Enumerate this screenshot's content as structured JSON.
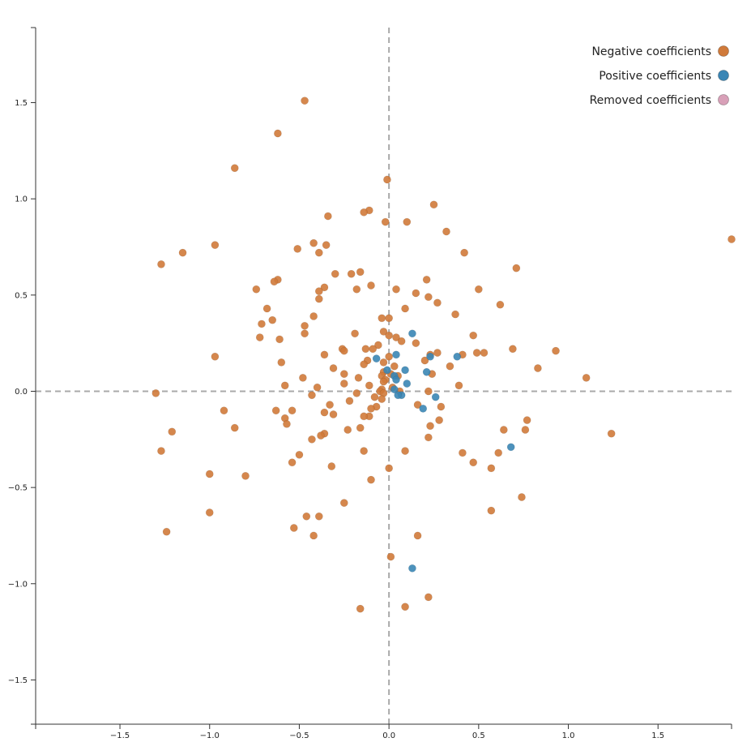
{
  "chart_data": {
    "type": "scatter",
    "title": "",
    "xlabel": "",
    "ylabel": "",
    "xlim": [
      -1.97,
      1.91
    ],
    "ylim": [
      -1.73,
      1.89
    ],
    "x_ticks": [
      -1.5,
      -1.0,
      -0.5,
      0.0,
      0.5,
      1.0,
      1.5
    ],
    "x_tick_labels": [
      "−1.5",
      "−1.0",
      "−0.5",
      "0.0",
      "0.5",
      "1.0",
      "1.5"
    ],
    "y_ticks": [
      1.5,
      1.0,
      0.5,
      0.0,
      -0.5,
      -1.0,
      -1.5
    ],
    "y_tick_labels": [
      "1.5",
      "1.0",
      "0.5",
      "0.0",
      "−0.5",
      "−1.0",
      "−1.5"
    ],
    "zero_lines": true,
    "grid": false,
    "legend_position": "top-right",
    "colors": {
      "negative": "#d07a3a",
      "positive": "#3a86b5",
      "removed": "#d8a0b8",
      "zero_line": "#a9a9a9",
      "axis": "#333333"
    },
    "series": [
      {
        "name": "Negative coefficients",
        "color_key": "negative",
        "points": [
          [
            -0.47,
            1.51
          ],
          [
            -0.62,
            1.34
          ],
          [
            -0.86,
            1.16
          ],
          [
            -0.01,
            1.1
          ],
          [
            0.25,
            0.97
          ],
          [
            -0.11,
            0.94
          ],
          [
            -0.14,
            0.93
          ],
          [
            -0.34,
            0.91
          ],
          [
            -0.02,
            0.88
          ],
          [
            0.1,
            0.88
          ],
          [
            0.32,
            0.83
          ],
          [
            1.91,
            0.79
          ],
          [
            -0.42,
            0.77
          ],
          [
            -0.97,
            0.76
          ],
          [
            -0.35,
            0.76
          ],
          [
            -0.51,
            0.74
          ],
          [
            -1.15,
            0.72
          ],
          [
            -0.39,
            0.72
          ],
          [
            0.42,
            0.72
          ],
          [
            -1.27,
            0.66
          ],
          [
            0.71,
            0.64
          ],
          [
            -0.16,
            0.62
          ],
          [
            -0.21,
            0.61
          ],
          [
            -0.3,
            0.61
          ],
          [
            -0.62,
            0.58
          ],
          [
            -0.64,
            0.57
          ],
          [
            0.21,
            0.58
          ],
          [
            -0.1,
            0.55
          ],
          [
            -0.36,
            0.54
          ],
          [
            -0.74,
            0.53
          ],
          [
            -0.18,
            0.53
          ],
          [
            0.04,
            0.53
          ],
          [
            0.5,
            0.53
          ],
          [
            -0.39,
            0.52
          ],
          [
            0.15,
            0.51
          ],
          [
            0.22,
            0.49
          ],
          [
            -0.39,
            0.48
          ],
          [
            0.27,
            0.46
          ],
          [
            0.62,
            0.45
          ],
          [
            -0.68,
            0.43
          ],
          [
            0.09,
            0.43
          ],
          [
            0.37,
            0.4
          ],
          [
            -0.42,
            0.39
          ],
          [
            -0.04,
            0.38
          ],
          [
            -0.65,
            0.37
          ],
          [
            -0.71,
            0.35
          ],
          [
            0.0,
            0.38
          ],
          [
            -0.47,
            0.34
          ],
          [
            -0.03,
            0.31
          ],
          [
            -0.19,
            0.3
          ],
          [
            -0.47,
            0.3
          ],
          [
            0.47,
            0.29
          ],
          [
            -0.72,
            0.28
          ],
          [
            -0.61,
            0.27
          ],
          [
            0.0,
            0.29
          ],
          [
            0.04,
            0.28
          ],
          [
            0.07,
            0.26
          ],
          [
            0.15,
            0.25
          ],
          [
            -0.06,
            0.24
          ],
          [
            -0.13,
            0.22
          ],
          [
            -0.09,
            0.22
          ],
          [
            0.69,
            0.22
          ],
          [
            0.93,
            0.21
          ],
          [
            -0.26,
            0.22
          ],
          [
            -0.25,
            0.21
          ],
          [
            0.27,
            0.2
          ],
          [
            -0.36,
            0.19
          ],
          [
            0.41,
            0.19
          ],
          [
            0.53,
            0.2
          ],
          [
            0.49,
            0.2
          ],
          [
            -0.97,
            0.18
          ],
          [
            0.0,
            0.18
          ],
          [
            0.23,
            0.19
          ],
          [
            -0.12,
            0.16
          ],
          [
            -0.03,
            0.15
          ],
          [
            0.2,
            0.16
          ],
          [
            -0.6,
            0.15
          ],
          [
            -0.14,
            0.14
          ],
          [
            0.34,
            0.13
          ],
          [
            0.03,
            0.13
          ],
          [
            0.83,
            0.12
          ],
          [
            -0.31,
            0.12
          ],
          [
            -0.03,
            0.1
          ],
          [
            0.01,
            0.09
          ],
          [
            -0.25,
            0.09
          ],
          [
            0.24,
            0.09
          ],
          [
            -0.04,
            0.08
          ],
          [
            0.05,
            0.08
          ],
          [
            1.1,
            0.07
          ],
          [
            -0.17,
            0.07
          ],
          [
            -0.48,
            0.07
          ],
          [
            -0.02,
            0.06
          ],
          [
            -0.03,
            0.05
          ],
          [
            -0.25,
            0.04
          ],
          [
            -0.11,
            0.03
          ],
          [
            0.39,
            0.03
          ],
          [
            -0.58,
            0.03
          ],
          [
            -0.4,
            0.02
          ],
          [
            0.02,
            0.02
          ],
          [
            -0.04,
            0.01
          ],
          [
            -0.05,
            0.0
          ],
          [
            0.06,
            0.0
          ],
          [
            0.22,
            0.0
          ],
          [
            -0.03,
            -0.01
          ],
          [
            -1.3,
            -0.01
          ],
          [
            -0.18,
            -0.01
          ],
          [
            -0.43,
            -0.02
          ],
          [
            -0.08,
            -0.03
          ],
          [
            -0.04,
            -0.04
          ],
          [
            -0.22,
            -0.05
          ],
          [
            0.16,
            -0.07
          ],
          [
            -0.33,
            -0.07
          ],
          [
            -0.07,
            -0.08
          ],
          [
            0.29,
            -0.08
          ],
          [
            -0.1,
            -0.09
          ],
          [
            -0.92,
            -0.1
          ],
          [
            -0.54,
            -0.1
          ],
          [
            -0.63,
            -0.1
          ],
          [
            -0.36,
            -0.11
          ],
          [
            -0.31,
            -0.12
          ],
          [
            -0.11,
            -0.13
          ],
          [
            -0.14,
            -0.13
          ],
          [
            -0.58,
            -0.14
          ],
          [
            0.77,
            -0.15
          ],
          [
            0.28,
            -0.15
          ],
          [
            -0.57,
            -0.17
          ],
          [
            0.23,
            -0.18
          ],
          [
            -0.86,
            -0.19
          ],
          [
            -0.16,
            -0.19
          ],
          [
            0.64,
            -0.2
          ],
          [
            0.76,
            -0.2
          ],
          [
            -0.23,
            -0.2
          ],
          [
            -1.21,
            -0.21
          ],
          [
            -0.36,
            -0.22
          ],
          [
            -0.38,
            -0.23
          ],
          [
            0.22,
            -0.24
          ],
          [
            1.24,
            -0.22
          ],
          [
            -0.43,
            -0.25
          ],
          [
            -1.27,
            -0.31
          ],
          [
            -0.14,
            -0.31
          ],
          [
            0.09,
            -0.31
          ],
          [
            0.41,
            -0.32
          ],
          [
            0.61,
            -0.32
          ],
          [
            -0.5,
            -0.33
          ],
          [
            -0.54,
            -0.37
          ],
          [
            0.47,
            -0.37
          ],
          [
            -0.32,
            -0.39
          ],
          [
            0.0,
            -0.4
          ],
          [
            0.57,
            -0.4
          ],
          [
            -1.0,
            -0.43
          ],
          [
            -0.8,
            -0.44
          ],
          [
            -0.1,
            -0.46
          ],
          [
            0.74,
            -0.55
          ],
          [
            -0.25,
            -0.58
          ],
          [
            0.57,
            -0.62
          ],
          [
            -1.0,
            -0.63
          ],
          [
            -0.46,
            -0.65
          ],
          [
            -0.39,
            -0.65
          ],
          [
            -0.53,
            -0.71
          ],
          [
            -1.24,
            -0.73
          ],
          [
            -0.42,
            -0.75
          ],
          [
            0.16,
            -0.75
          ],
          [
            0.01,
            -0.86
          ],
          [
            0.22,
            -1.07
          ],
          [
            -0.16,
            -1.13
          ],
          [
            0.09,
            -1.12
          ]
        ]
      },
      {
        "name": "Positive coefficients",
        "color_key": "positive",
        "points": [
          [
            0.13,
            0.3
          ],
          [
            -0.07,
            0.17
          ],
          [
            0.04,
            0.19
          ],
          [
            0.23,
            0.18
          ],
          [
            0.38,
            0.18
          ],
          [
            -0.01,
            0.11
          ],
          [
            0.09,
            0.11
          ],
          [
            0.21,
            0.1
          ],
          [
            0.03,
            0.08
          ],
          [
            0.04,
            0.06
          ],
          [
            0.1,
            0.04
          ],
          [
            0.03,
            0.01
          ],
          [
            0.07,
            -0.02
          ],
          [
            0.05,
            -0.02
          ],
          [
            0.26,
            -0.03
          ],
          [
            0.19,
            -0.09
          ],
          [
            0.68,
            -0.29
          ],
          [
            0.13,
            -0.92
          ]
        ]
      },
      {
        "name": "Removed coefficients",
        "color_key": "removed",
        "points": []
      }
    ]
  }
}
